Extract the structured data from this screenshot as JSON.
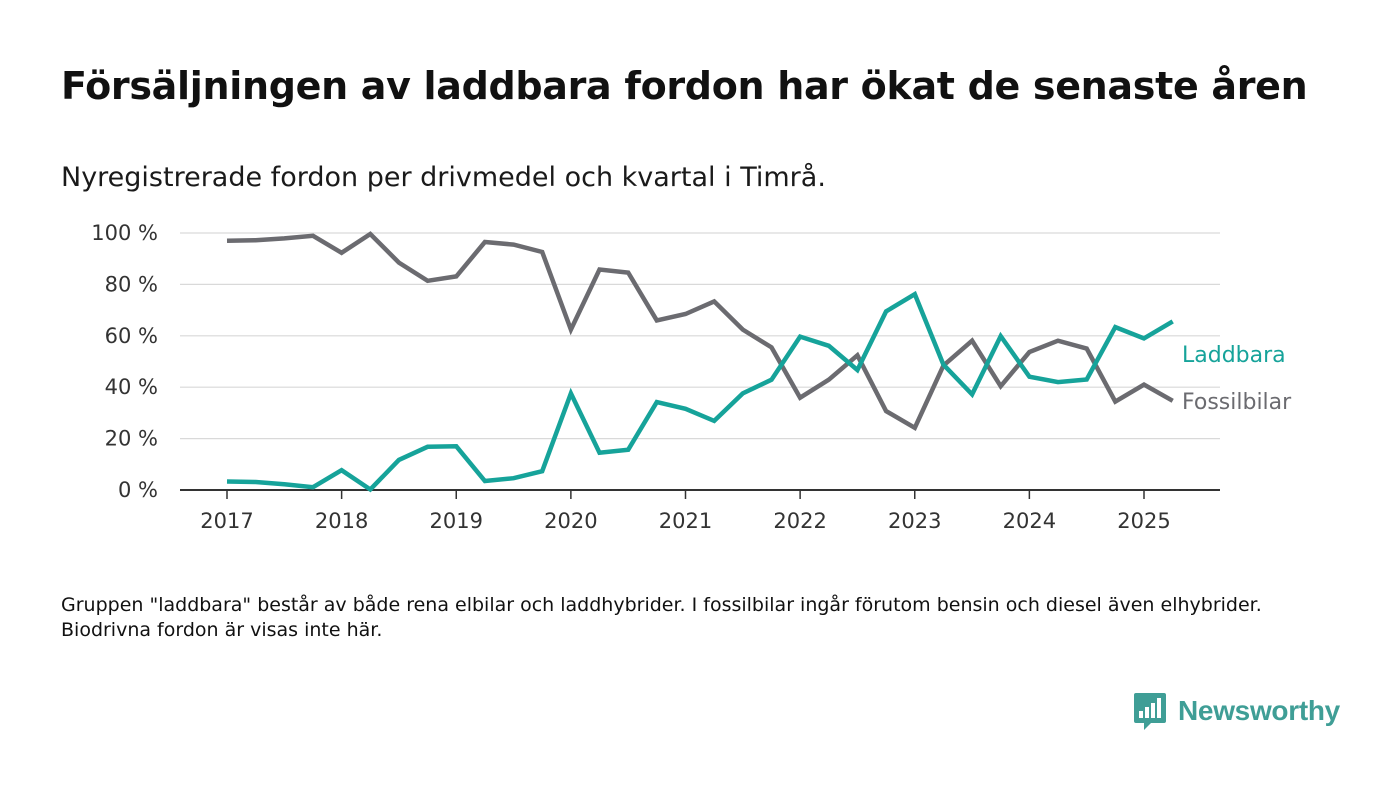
{
  "header": {
    "title": "Försäljningen av laddbara fordon har ökat de senaste åren",
    "subtitle": "Nyregistrerade fordon per drivmedel och kvartal i Timrå."
  },
  "footnote": "Gruppen \"laddbara\" består av både rena elbilar och laddhybrider. I fossilbilar ingår förutom bensin och diesel även elhybrider. Biodrivna fordon är visas inte här.",
  "brand": {
    "name": "Newsworthy",
    "icon": "bar-chart-bubble-icon",
    "color": "#3f9e96"
  },
  "chart_data": {
    "type": "line",
    "title": "",
    "xlabel": "",
    "ylabel": "",
    "ylim": [
      0,
      100
    ],
    "xlim": [
      2017,
      2025.25
    ],
    "y_ticks": [
      0,
      20,
      40,
      60,
      80,
      100
    ],
    "y_tick_labels": [
      "0 %",
      "20 %",
      "40 %",
      "60 %",
      "80 %",
      "100 %"
    ],
    "x_ticks": [
      2017,
      2018,
      2019,
      2020,
      2021,
      2022,
      2023,
      2024,
      2025
    ],
    "x_tick_labels": [
      "2017",
      "2018",
      "2019",
      "2020",
      "2021",
      "2022",
      "2023",
      "2024",
      "2025"
    ],
    "grid": true,
    "legend": "direct labels at line ends (right)",
    "x": [
      2017,
      2017.25,
      2017.5,
      2017.75,
      2018,
      2018.25,
      2018.5,
      2018.75,
      2019,
      2019.25,
      2019.5,
      2019.75,
      2020,
      2020.25,
      2020.5,
      2020.75,
      2021,
      2021.25,
      2021.5,
      2021.75,
      2022,
      2022.25,
      2022.5,
      2022.75,
      2023,
      2023.25,
      2023.5,
      2023.75,
      2024,
      2024.25,
      2024.5,
      2024.75,
      2025,
      2025.25
    ],
    "series": [
      {
        "name": "Laddbara",
        "color": "#16a39a",
        "values": [
          3.3,
          3.1,
          2.2,
          1.1,
          7.7,
          0.2,
          11.7,
          16.8,
          17.0,
          3.5,
          4.6,
          7.3,
          37.6,
          14.5,
          15.7,
          34.2,
          31.6,
          26.9,
          37.6,
          42.9,
          59.7,
          56.1,
          46.7,
          69.5,
          76.2,
          48.8,
          37.2,
          59.9,
          44.1,
          42.0,
          43.0,
          63.4,
          59.0,
          65.6
        ]
      },
      {
        "name": "Fossilbilar",
        "color": "#6b6b70",
        "values": [
          97.0,
          97.2,
          97.9,
          98.9,
          92.3,
          99.6,
          88.5,
          81.4,
          83.1,
          96.5,
          95.5,
          92.6,
          62.4,
          85.8,
          84.6,
          66.0,
          68.5,
          73.4,
          62.4,
          55.5,
          35.9,
          42.9,
          52.4,
          30.7,
          24.2,
          48.4,
          58.1,
          40.4,
          53.7,
          58.1,
          55.0,
          34.4,
          41.0,
          34.7
        ]
      }
    ]
  }
}
